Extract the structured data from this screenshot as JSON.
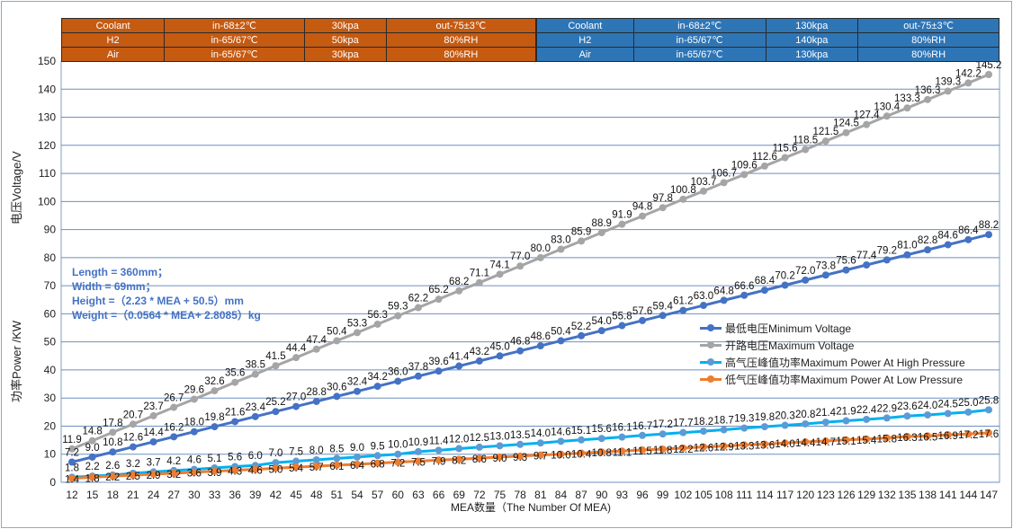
{
  "conditions": {
    "low_pressure": [
      [
        "Coolant",
        "in-68±2℃",
        "30kpa",
        "out-75±3℃"
      ],
      [
        "H2",
        "in-65/67℃",
        "50kpa",
        "80%RH"
      ],
      [
        "Air",
        "in-65/67℃",
        "30kpa",
        "80%RH"
      ]
    ],
    "high_pressure": [
      [
        "Coolant",
        "in-68±2℃",
        "130kpa",
        "out-75±3℃"
      ],
      [
        "H2",
        "in-65/67℃",
        "140kpa",
        "80%RH"
      ],
      [
        "Air",
        "in-65/67℃",
        "130kpa",
        "80%RH"
      ]
    ]
  },
  "notes": {
    "length": "Length = 360mm；",
    "width": "Width = 69mm；",
    "height": "Height =（2.23 * MEA + 50.5）mm",
    "weight": "Weight =（0.0564 * MEA+ 2.8085）kg"
  },
  "chart_data": {
    "type": "line",
    "xlabel": "MEA数量（The Number Of MEA)",
    "ylabel_top": "电压Voltage/V",
    "ylabel_bottom": "功率Power /KW",
    "ylim": [
      0,
      150
    ],
    "yticks": [
      0,
      10,
      20,
      30,
      40,
      50,
      60,
      70,
      80,
      90,
      100,
      110,
      120,
      130,
      140,
      150
    ],
    "grid": true,
    "legend_position": "center-right",
    "x": [
      12,
      15,
      18,
      21,
      24,
      27,
      30,
      33,
      36,
      39,
      42,
      45,
      48,
      51,
      54,
      57,
      60,
      63,
      66,
      69,
      72,
      75,
      78,
      81,
      84,
      87,
      90,
      93,
      96,
      99,
      102,
      105,
      108,
      111,
      114,
      117,
      120,
      123,
      126,
      129,
      132,
      135,
      138,
      141,
      144,
      147
    ],
    "series": [
      {
        "name": "最低电压Minimum Voltage",
        "color": "#4472c4",
        "marker": "#4472c4",
        "values": [
          7.2,
          9.0,
          10.8,
          12.6,
          14.4,
          16.2,
          18.0,
          19.8,
          21.6,
          23.4,
          25.2,
          27.0,
          28.8,
          30.6,
          32.4,
          34.2,
          36.0,
          37.8,
          39.6,
          41.4,
          43.2,
          45.0,
          46.8,
          48.6,
          50.4,
          52.2,
          54.0,
          55.8,
          57.6,
          59.4,
          61.2,
          63.0,
          64.8,
          66.6,
          68.4,
          70.2,
          72.0,
          73.8,
          75.6,
          77.4,
          79.2,
          81.0,
          82.8,
          84.6,
          86.4,
          88.2
        ]
      },
      {
        "name": "开路电压Maximum Voltage",
        "color": "#a5a5a5",
        "marker": "#a5a5a5",
        "values": [
          11.9,
          14.8,
          17.8,
          20.7,
          23.7,
          26.7,
          29.6,
          32.6,
          35.6,
          38.5,
          41.5,
          44.4,
          47.4,
          50.4,
          53.3,
          56.3,
          59.3,
          62.2,
          65.2,
          68.2,
          71.1,
          74.1,
          77.0,
          80.0,
          83.0,
          85.9,
          88.9,
          91.9,
          94.8,
          97.8,
          100.8,
          103.7,
          106.7,
          109.6,
          112.6,
          115.6,
          118.5,
          121.5,
          124.5,
          127.4,
          130.4,
          133.3,
          136.3,
          139.3,
          142.2,
          145.2
        ]
      },
      {
        "name": "高气压峰值功率Maximum Power At High Pressure",
        "color": "#00b0f0",
        "marker": "#5b9bd5",
        "values": [
          1.8,
          2.2,
          2.6,
          3.2,
          3.7,
          4.2,
          4.6,
          5.1,
          5.6,
          6.0,
          7.0,
          7.5,
          8.0,
          8.5,
          9.0,
          9.5,
          10.0,
          10.9,
          11.4,
          12.0,
          12.5,
          13.0,
          13.5,
          14.0,
          14.6,
          15.1,
          15.6,
          16.1,
          16.7,
          17.2,
          17.7,
          18.2,
          18.7,
          19.3,
          19.8,
          20.3,
          20.8,
          21.4,
          21.9,
          22.4,
          22.9,
          23.6,
          24.0,
          24.5,
          25.0,
          25.8
        ]
      },
      {
        "name": "低气压峰值功率Maximum Power At Low Pressure",
        "color": "#ed7d31",
        "marker": "#ed7d31",
        "values": [
          1.4,
          1.8,
          2.2,
          2.5,
          2.9,
          3.2,
          3.6,
          3.9,
          4.3,
          4.6,
          5.0,
          5.4,
          5.7,
          6.1,
          6.4,
          6.8,
          7.2,
          7.5,
          7.9,
          8.2,
          8.6,
          9.0,
          9.3,
          9.7,
          10.0,
          10.4,
          10.8,
          11.1,
          11.5,
          11.8,
          12.2,
          12.6,
          12.9,
          13.3,
          13.6,
          14.0,
          14.4,
          14.7,
          15.1,
          15.4,
          15.8,
          16.3,
          16.5,
          16.9,
          17.2,
          17.6
        ]
      }
    ]
  }
}
